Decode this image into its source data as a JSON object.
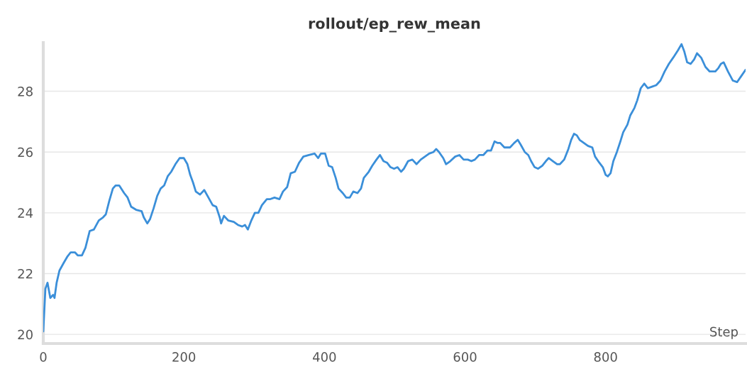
{
  "chart_data": {
    "type": "line",
    "title": "rollout/ep_rew_mean",
    "xlabel": "Step",
    "xlim": [
      0,
      999
    ],
    "ylim": [
      19.7,
      29.6
    ],
    "xticks": [
      0,
      200,
      400,
      600,
      800
    ],
    "yticks": [
      20,
      22,
      24,
      26,
      28
    ],
    "grid": "y",
    "legend": false,
    "series": [
      {
        "color": "#3b8fd9",
        "x": [
          0,
          3,
          6,
          10,
          14,
          16,
          19,
          23,
          29,
          34,
          39,
          45,
          49,
          55,
          60,
          66,
          72,
          79,
          85,
          89,
          94,
          99,
          103,
          108,
          115,
          120,
          125,
          132,
          140,
          143,
          148,
          152,
          157,
          162,
          167,
          172,
          177,
          182,
          188,
          194,
          200,
          205,
          209,
          213,
          217,
          223,
          229,
          235,
          241,
          246,
          251,
          253,
          257,
          263,
          271,
          277,
          283,
          287,
          291,
          296,
          301,
          306,
          311,
          318,
          323,
          329,
          336,
          341,
          347,
          352,
          358,
          364,
          370,
          378,
          386,
          391,
          395,
          401,
          406,
          411,
          416,
          420,
          426,
          431,
          436,
          441,
          447,
          452,
          456,
          463,
          468,
          474,
          479,
          484,
          489,
          494,
          499,
          504,
          509,
          513,
          519,
          525,
          531,
          537,
          543,
          549,
          555,
          559,
          563,
          569,
          573,
          579,
          586,
          592,
          598,
          604,
          609,
          614,
          620,
          626,
          632,
          637,
          642,
          646,
          650,
          656,
          664,
          670,
          675,
          679,
          685,
          690,
          694,
          699,
          704,
          710,
          715,
          719,
          725,
          731,
          735,
          741,
          747,
          751,
          755,
          759,
          763,
          769,
          775,
          781,
          785,
          791,
          796,
          800,
          803,
          807,
          811,
          816,
          821,
          825,
          831,
          835,
          841,
          845,
          850,
          855,
          860,
          866,
          872,
          878,
          884,
          890,
          896,
          903,
          908,
          912,
          916,
          921,
          926,
          930,
          936,
          942,
          948,
          956,
          960,
          964,
          968,
          974,
          981,
          987,
          993,
          999
        ],
        "values": [
          20.1,
          21.5,
          21.7,
          21.2,
          21.3,
          21.2,
          21.7,
          22.1,
          22.35,
          22.55,
          22.7,
          22.7,
          22.6,
          22.6,
          22.85,
          23.4,
          23.45,
          23.75,
          23.85,
          23.95,
          24.4,
          24.8,
          24.9,
          24.9,
          24.65,
          24.5,
          24.2,
          24.1,
          24.05,
          23.85,
          23.65,
          23.8,
          24.15,
          24.55,
          24.8,
          24.9,
          25.2,
          25.35,
          25.6,
          25.8,
          25.8,
          25.6,
          25.25,
          25.0,
          24.7,
          24.6,
          24.75,
          24.5,
          24.25,
          24.2,
          23.85,
          23.65,
          23.9,
          23.75,
          23.7,
          23.6,
          23.55,
          23.6,
          23.45,
          23.75,
          24.0,
          24.0,
          24.25,
          24.45,
          24.45,
          24.5,
          24.45,
          24.7,
          24.85,
          25.3,
          25.35,
          25.65,
          25.85,
          25.9,
          25.95,
          25.8,
          25.95,
          25.95,
          25.55,
          25.5,
          25.15,
          24.8,
          24.65,
          24.5,
          24.5,
          24.7,
          24.65,
          24.8,
          25.15,
          25.35,
          25.55,
          25.75,
          25.9,
          25.7,
          25.65,
          25.5,
          25.45,
          25.5,
          25.35,
          25.45,
          25.7,
          25.75,
          25.6,
          25.75,
          25.85,
          25.95,
          26.0,
          26.1,
          26.0,
          25.8,
          25.6,
          25.7,
          25.85,
          25.9,
          25.75,
          25.75,
          25.7,
          25.75,
          25.9,
          25.9,
          26.05,
          26.05,
          26.35,
          26.3,
          26.3,
          26.15,
          26.15,
          26.3,
          26.4,
          26.25,
          26.0,
          25.9,
          25.7,
          25.5,
          25.45,
          25.55,
          25.7,
          25.8,
          25.7,
          25.6,
          25.6,
          25.75,
          26.1,
          26.4,
          26.6,
          26.55,
          26.4,
          26.3,
          26.2,
          26.15,
          25.85,
          25.65,
          25.5,
          25.25,
          25.2,
          25.3,
          25.7,
          26.0,
          26.35,
          26.65,
          26.9,
          27.2,
          27.45,
          27.7,
          28.1,
          28.25,
          28.1,
          28.15,
          28.2,
          28.35,
          28.65,
          28.9,
          29.1,
          29.35,
          29.55,
          29.3,
          28.95,
          28.9,
          29.05,
          29.25,
          29.1,
          28.8,
          28.65,
          28.65,
          28.75,
          28.9,
          28.95,
          28.65,
          28.35,
          28.3,
          28.5,
          28.7
        ]
      }
    ]
  }
}
